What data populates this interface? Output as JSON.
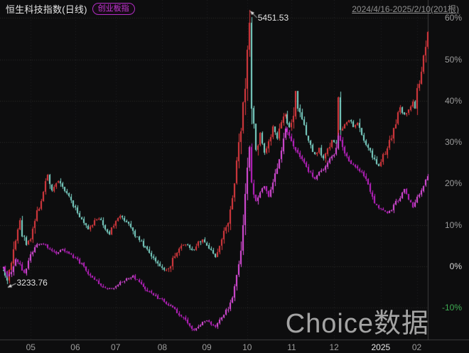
{
  "header": {
    "title": "恒生科技指数(日线)",
    "compare_badge": "创业板指",
    "date_range": "2024/4/16-2025/2/10(201根)"
  },
  "watermark": "Choice数据",
  "colors": {
    "background": "#0d0d0e",
    "up": "#e23b41",
    "down": "#7fd9cd",
    "overlay_up": "#e24fe2",
    "overlay_down": "#c122c8",
    "grid": "#2c2c2c",
    "vgrid": "#232323",
    "axis_line": "#3f3f3f",
    "label": "#9c9c9c",
    "label_zero": "#d8d8d8",
    "label_negative": "#3fae53",
    "label_highlight": "#e8e8e8",
    "annotation": "#dcdcdc",
    "badge": "#c837d8"
  },
  "chart_data": {
    "type": "candlestick",
    "title": "恒生科技指数(日线) 与 创业板指 涨跌幅对比",
    "bars_total": 201,
    "date_range": "2024/4/16-2025/2/10",
    "y_axis": {
      "unit": "%",
      "min": -17,
      "max": 63,
      "ticks": [
        {
          "pct": 60,
          "label": "60%"
        },
        {
          "pct": 50,
          "label": "50%"
        },
        {
          "pct": 40,
          "label": "40%"
        },
        {
          "pct": 30,
          "label": "30%"
        },
        {
          "pct": 20,
          "label": "20%"
        },
        {
          "pct": 10,
          "label": "10%"
        },
        {
          "pct": 0,
          "label": "0%",
          "zero": true
        },
        {
          "pct": -10,
          "label": "-10%",
          "negative": true
        }
      ]
    },
    "x_axis": {
      "ticks": [
        {
          "bar": 13,
          "label": "05"
        },
        {
          "bar": 34,
          "label": "06"
        },
        {
          "bar": 53,
          "label": "07"
        },
        {
          "bar": 75,
          "label": "08"
        },
        {
          "bar": 96,
          "label": "09"
        },
        {
          "bar": 115,
          "label": "10"
        },
        {
          "bar": 136,
          "label": "11"
        },
        {
          "bar": 156,
          "label": "12"
        },
        {
          "bar": 178,
          "label": "2025",
          "highlight": true
        },
        {
          "bar": 195,
          "label": "02"
        }
      ]
    },
    "series": [
      {
        "name": "恒生科技指数",
        "kind": "candles",
        "up_color": "#e23b41",
        "down_color": "#7fd9cd",
        "high_value": 5451.53,
        "low_value": 3233.76,
        "anchors_pct": [
          [
            0,
            -0.5
          ],
          [
            2,
            -3.5
          ],
          [
            4,
            1
          ],
          [
            6,
            7
          ],
          [
            8,
            11
          ],
          [
            9,
            8
          ],
          [
            11,
            5.5
          ],
          [
            13,
            7
          ],
          [
            15,
            11
          ],
          [
            17,
            14.5
          ],
          [
            19,
            18.5
          ],
          [
            21,
            22
          ],
          [
            23,
            18.5
          ],
          [
            26,
            20.5
          ],
          [
            28,
            19
          ],
          [
            30,
            17.5
          ],
          [
            32,
            16
          ],
          [
            34,
            14
          ],
          [
            36,
            12
          ],
          [
            38,
            10.5
          ],
          [
            40,
            9
          ],
          [
            43,
            11
          ],
          [
            46,
            11.5
          ],
          [
            48,
            9
          ],
          [
            50,
            8
          ],
          [
            52,
            10
          ],
          [
            55,
            12
          ],
          [
            58,
            11
          ],
          [
            60,
            9.5
          ],
          [
            62,
            7.5
          ],
          [
            64,
            6.5
          ],
          [
            66,
            5
          ],
          [
            68,
            4
          ],
          [
            70,
            2.5
          ],
          [
            72,
            1.5
          ],
          [
            74,
            0
          ],
          [
            76,
            -0.8
          ],
          [
            78,
            -0.5
          ],
          [
            80,
            1.5
          ],
          [
            82,
            3.5
          ],
          [
            84,
            5
          ],
          [
            86,
            5.5
          ],
          [
            88,
            4.5
          ],
          [
            90,
            4
          ],
          [
            92,
            5.5
          ],
          [
            94,
            6.5
          ],
          [
            96,
            5
          ],
          [
            98,
            3.5
          ],
          [
            100,
            2.5
          ],
          [
            102,
            5
          ],
          [
            104,
            8
          ],
          [
            106,
            11
          ],
          [
            108,
            17
          ],
          [
            110,
            24
          ],
          [
            112,
            33
          ],
          [
            114,
            45
          ],
          [
            115,
            52
          ],
          [
            116,
            59
          ],
          [
            117,
            39.5
          ],
          [
            118,
            33
          ],
          [
            119,
            28
          ],
          [
            121,
            32
          ],
          [
            123,
            27.5
          ],
          [
            125,
            30
          ],
          [
            127,
            34
          ],
          [
            129,
            31
          ],
          [
            131,
            35
          ],
          [
            133,
            37
          ],
          [
            135,
            33.5
          ],
          [
            137,
            36.5
          ],
          [
            138,
            42
          ],
          [
            139,
            38
          ],
          [
            141,
            35
          ],
          [
            143,
            32
          ],
          [
            145,
            29.5
          ],
          [
            147,
            27
          ],
          [
            149,
            28.5
          ],
          [
            151,
            26
          ],
          [
            153,
            28
          ],
          [
            155,
            30.5
          ],
          [
            157,
            29.5
          ],
          [
            158,
            41
          ],
          [
            159,
            32
          ],
          [
            161,
            34
          ],
          [
            163,
            35.5
          ],
          [
            165,
            33.5
          ],
          [
            167,
            34.5
          ],
          [
            169,
            31.5
          ],
          [
            171,
            29.5
          ],
          [
            173,
            27.5
          ],
          [
            175,
            25.5
          ],
          [
            177,
            24
          ],
          [
            179,
            26.5
          ],
          [
            181,
            28.5
          ],
          [
            183,
            31.5
          ],
          [
            185,
            34.5
          ],
          [
            187,
            38.5
          ],
          [
            189,
            36.5
          ],
          [
            191,
            38
          ],
          [
            193,
            40
          ],
          [
            194,
            38.5
          ],
          [
            195,
            42
          ],
          [
            196,
            44.5
          ],
          [
            197,
            47
          ],
          [
            198,
            50
          ],
          [
            199,
            53
          ],
          [
            200,
            56
          ]
        ]
      },
      {
        "name": "创业板指",
        "kind": "candles",
        "up_color": "#e24fe2",
        "down_color": "#c122c8",
        "anchors_pct": [
          [
            0,
            -0.3
          ],
          [
            2,
            -2.5
          ],
          [
            4,
            -1.5
          ],
          [
            6,
            1.5
          ],
          [
            8,
            0.5
          ],
          [
            10,
            -1.5
          ],
          [
            13,
            3
          ],
          [
            16,
            5
          ],
          [
            19,
            5.5
          ],
          [
            22,
            4
          ],
          [
            25,
            3
          ],
          [
            28,
            4.2
          ],
          [
            31,
            3
          ],
          [
            34,
            2
          ],
          [
            37,
            0.5
          ],
          [
            40,
            -1.5
          ],
          [
            43,
            -3
          ],
          [
            46,
            -4.5
          ],
          [
            49,
            -5.5
          ],
          [
            52,
            -5
          ],
          [
            55,
            -4
          ],
          [
            58,
            -3
          ],
          [
            61,
            -2.5
          ],
          [
            64,
            -4
          ],
          [
            67,
            -5.5
          ],
          [
            70,
            -6.5
          ],
          [
            73,
            -7.5
          ],
          [
            76,
            -8.5
          ],
          [
            79,
            -9.5
          ],
          [
            82,
            -11
          ],
          [
            85,
            -12.5
          ],
          [
            88,
            -14.5
          ],
          [
            90,
            -15.5
          ],
          [
            92,
            -14.5
          ],
          [
            94,
            -13.5
          ],
          [
            96,
            -13
          ],
          [
            98,
            -14
          ],
          [
            100,
            -14.5
          ],
          [
            102,
            -13
          ],
          [
            104,
            -11.5
          ],
          [
            106,
            -10
          ],
          [
            108,
            -7
          ],
          [
            110,
            -3
          ],
          [
            112,
            5
          ],
          [
            114,
            17
          ],
          [
            115,
            24
          ],
          [
            116,
            29
          ],
          [
            117,
            21
          ],
          [
            118,
            17
          ],
          [
            119,
            15.5
          ],
          [
            121,
            18
          ],
          [
            123,
            19.5
          ],
          [
            125,
            17
          ],
          [
            127,
            20
          ],
          [
            129,
            24
          ],
          [
            131,
            28
          ],
          [
            133,
            33
          ],
          [
            135,
            31
          ],
          [
            137,
            29
          ],
          [
            139,
            27.5
          ],
          [
            141,
            25.5
          ],
          [
            143,
            24
          ],
          [
            145,
            22.5
          ],
          [
            147,
            21
          ],
          [
            149,
            22.5
          ],
          [
            151,
            23.5
          ],
          [
            153,
            25
          ],
          [
            155,
            26.5
          ],
          [
            157,
            28
          ],
          [
            158,
            32
          ],
          [
            159,
            30
          ],
          [
            161,
            27
          ],
          [
            163,
            25.5
          ],
          [
            165,
            24.5
          ],
          [
            167,
            23.5
          ],
          [
            169,
            22.5
          ],
          [
            171,
            21
          ],
          [
            173,
            18
          ],
          [
            175,
            15.5
          ],
          [
            177,
            14
          ],
          [
            179,
            13.5
          ],
          [
            181,
            13
          ],
          [
            183,
            13.8
          ],
          [
            185,
            15.5
          ],
          [
            187,
            16.5
          ],
          [
            189,
            18.5
          ],
          [
            191,
            16
          ],
          [
            193,
            14.5
          ],
          [
            195,
            16.5
          ],
          [
            197,
            18
          ],
          [
            199,
            20.5
          ],
          [
            200,
            21.5
          ]
        ]
      }
    ],
    "annotations": [
      {
        "label": "5451.53",
        "bar": 116,
        "pct": 61.9,
        "kind": "high"
      },
      {
        "label": "3233.76",
        "bar": 2,
        "pct": -4.3,
        "kind": "low"
      }
    ]
  }
}
